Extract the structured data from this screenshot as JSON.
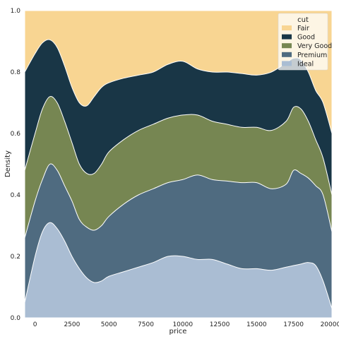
{
  "chart_data": {
    "type": "area",
    "stacked": true,
    "normalized": true,
    "xlabel": "price",
    "ylabel": "Density",
    "xlim": [
      -700,
      20100
    ],
    "ylim": [
      0,
      1
    ],
    "xticks": [
      0,
      2500,
      5000,
      7500,
      10000,
      12500,
      15000,
      17500,
      20000
    ],
    "xtick_labels": [
      "0",
      "2500",
      "5000",
      "7500",
      "10000",
      "12500",
      "15000",
      "17500",
      "20000"
    ],
    "yticks": [
      0.0,
      0.2,
      0.4,
      0.6,
      0.8,
      1.0
    ],
    "ytick_labels": [
      "0.0",
      "0.2",
      "0.4",
      "0.6",
      "0.8",
      "1.0"
    ],
    "grid": false,
    "legend": {
      "title": "cut",
      "placement": "top-right"
    },
    "x": [
      -700,
      0,
      500,
      1000,
      1500,
      2000,
      2500,
      3000,
      3500,
      4000,
      4500,
      5000,
      6000,
      7000,
      8000,
      9000,
      10000,
      11000,
      12000,
      13000,
      14000,
      15000,
      16000,
      17000,
      17500,
      18000,
      18500,
      19000,
      19500,
      20100
    ],
    "series": [
      {
        "name": "Ideal",
        "color": "#aabdd3",
        "values": [
          0.05,
          0.2,
          0.28,
          0.31,
          0.29,
          0.25,
          0.2,
          0.16,
          0.13,
          0.115,
          0.12,
          0.135,
          0.15,
          0.165,
          0.18,
          0.2,
          0.2,
          0.19,
          0.19,
          0.175,
          0.16,
          0.16,
          0.155,
          0.165,
          0.17,
          0.175,
          0.18,
          0.17,
          0.12,
          0.03
        ]
      },
      {
        "name": "Premium",
        "color": "#4f6b80",
        "values": [
          0.26,
          0.38,
          0.45,
          0.5,
          0.48,
          0.43,
          0.38,
          0.32,
          0.295,
          0.285,
          0.3,
          0.33,
          0.37,
          0.4,
          0.42,
          0.44,
          0.45,
          0.465,
          0.45,
          0.445,
          0.44,
          0.44,
          0.42,
          0.435,
          0.48,
          0.47,
          0.455,
          0.43,
          0.4,
          0.28
        ]
      },
      {
        "name": "Very Good",
        "color": "#768652",
        "values": [
          0.48,
          0.6,
          0.68,
          0.72,
          0.7,
          0.64,
          0.57,
          0.5,
          0.47,
          0.47,
          0.5,
          0.54,
          0.58,
          0.61,
          0.63,
          0.65,
          0.66,
          0.66,
          0.64,
          0.63,
          0.62,
          0.62,
          0.61,
          0.64,
          0.685,
          0.68,
          0.64,
          0.58,
          0.52,
          0.4
        ]
      },
      {
        "name": "Good",
        "color": "#193646",
        "values": [
          0.8,
          0.86,
          0.895,
          0.905,
          0.88,
          0.82,
          0.75,
          0.7,
          0.69,
          0.72,
          0.75,
          0.765,
          0.78,
          0.79,
          0.8,
          0.825,
          0.835,
          0.81,
          0.8,
          0.8,
          0.795,
          0.79,
          0.8,
          0.83,
          0.845,
          0.84,
          0.8,
          0.74,
          0.7,
          0.6
        ]
      },
      {
        "name": "Fair",
        "color": "#f8d592",
        "values": [
          1,
          1,
          1,
          1,
          1,
          1,
          1,
          1,
          1,
          1,
          1,
          1,
          1,
          1,
          1,
          1,
          1,
          1,
          1,
          1,
          1,
          1,
          1,
          1,
          1,
          1,
          1,
          1,
          1,
          1
        ]
      }
    ],
    "legend_order": [
      "Fair",
      "Good",
      "Very Good",
      "Premium",
      "Ideal"
    ]
  }
}
